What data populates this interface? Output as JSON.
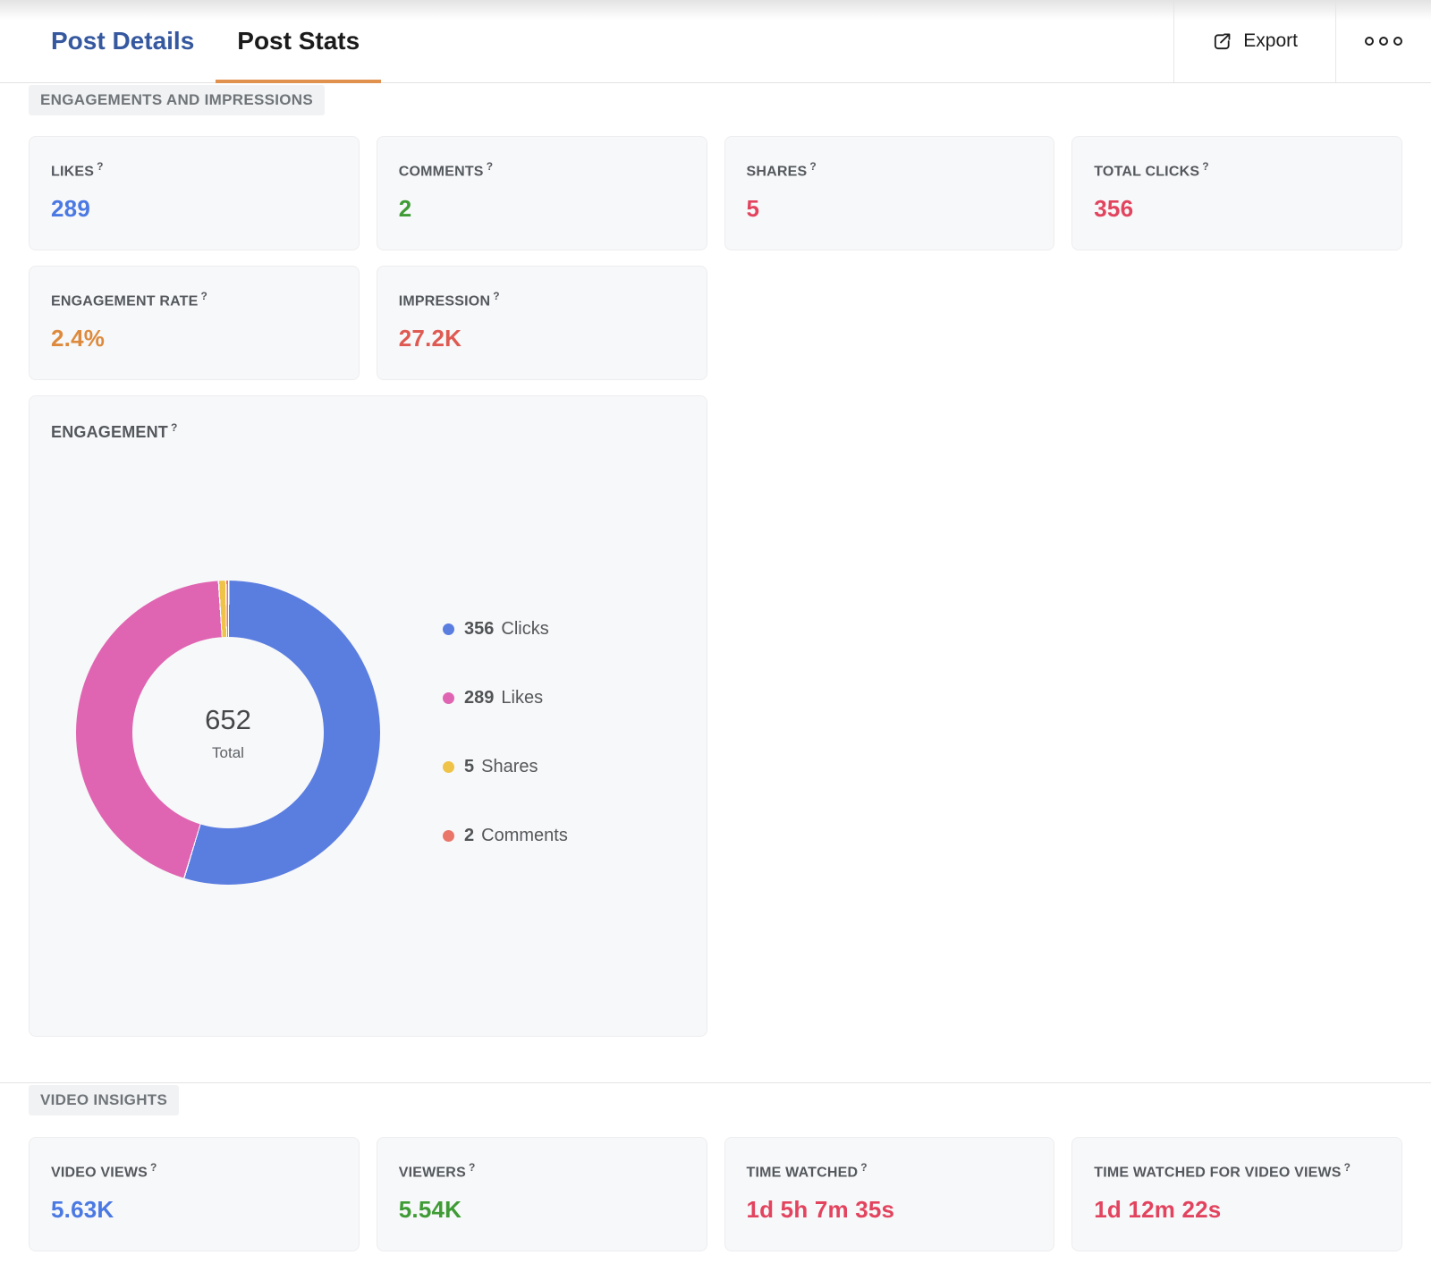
{
  "header": {
    "tabs": [
      {
        "label": "Post Details",
        "active": false
      },
      {
        "label": "Post Stats",
        "active": true
      }
    ],
    "export_label": "Export"
  },
  "icons": {
    "help": "?"
  },
  "section_engagements": {
    "label": "ENGAGEMENTS AND IMPRESSIONS"
  },
  "section_video": {
    "label": "VIDEO INSIGHTS"
  },
  "cards": {
    "likes": {
      "label": "LIKES",
      "value": "289",
      "color": "#4b79e3"
    },
    "comments": {
      "label": "COMMENTS",
      "value": "2",
      "color": "#3f9b35"
    },
    "shares": {
      "label": "SHARES",
      "value": "5",
      "color": "#e2445f"
    },
    "total_clicks": {
      "label": "TOTAL CLICKS",
      "value": "356",
      "color": "#e2445f"
    },
    "engagement_rate": {
      "label": "ENGAGEMENT RATE",
      "value": "2.4%",
      "color": "#dd8a3d"
    },
    "impression": {
      "label": "IMPRESSION",
      "value": "27.2K",
      "color": "#de5a52"
    },
    "video_views": {
      "label": "VIDEO VIEWS",
      "value": "5.63K",
      "color": "#4b79e3"
    },
    "viewers": {
      "label": "VIEWERS",
      "value": "5.54K",
      "color": "#3f9b35"
    },
    "time_watched": {
      "label": "TIME WATCHED",
      "value": "1d 5h 7m 35s",
      "color": "#e2445f"
    },
    "time_watched_video_views": {
      "label": "TIME WATCHED FOR VIDEO VIEWS",
      "value": "1d 12m 22s",
      "color": "#e2445f"
    }
  },
  "chart_data": {
    "type": "pie",
    "title": "ENGAGEMENT",
    "center_total": "652",
    "center_label": "Total",
    "legend_position": "right",
    "series": [
      {
        "name": "Clicks",
        "value": 356,
        "color": "#5a7de0"
      },
      {
        "name": "Likes",
        "value": 289,
        "color": "#df65b2"
      },
      {
        "name": "Shares",
        "value": 5,
        "color": "#efc347"
      },
      {
        "name": "Comments",
        "value": 2,
        "color": "#ea766a"
      }
    ]
  }
}
